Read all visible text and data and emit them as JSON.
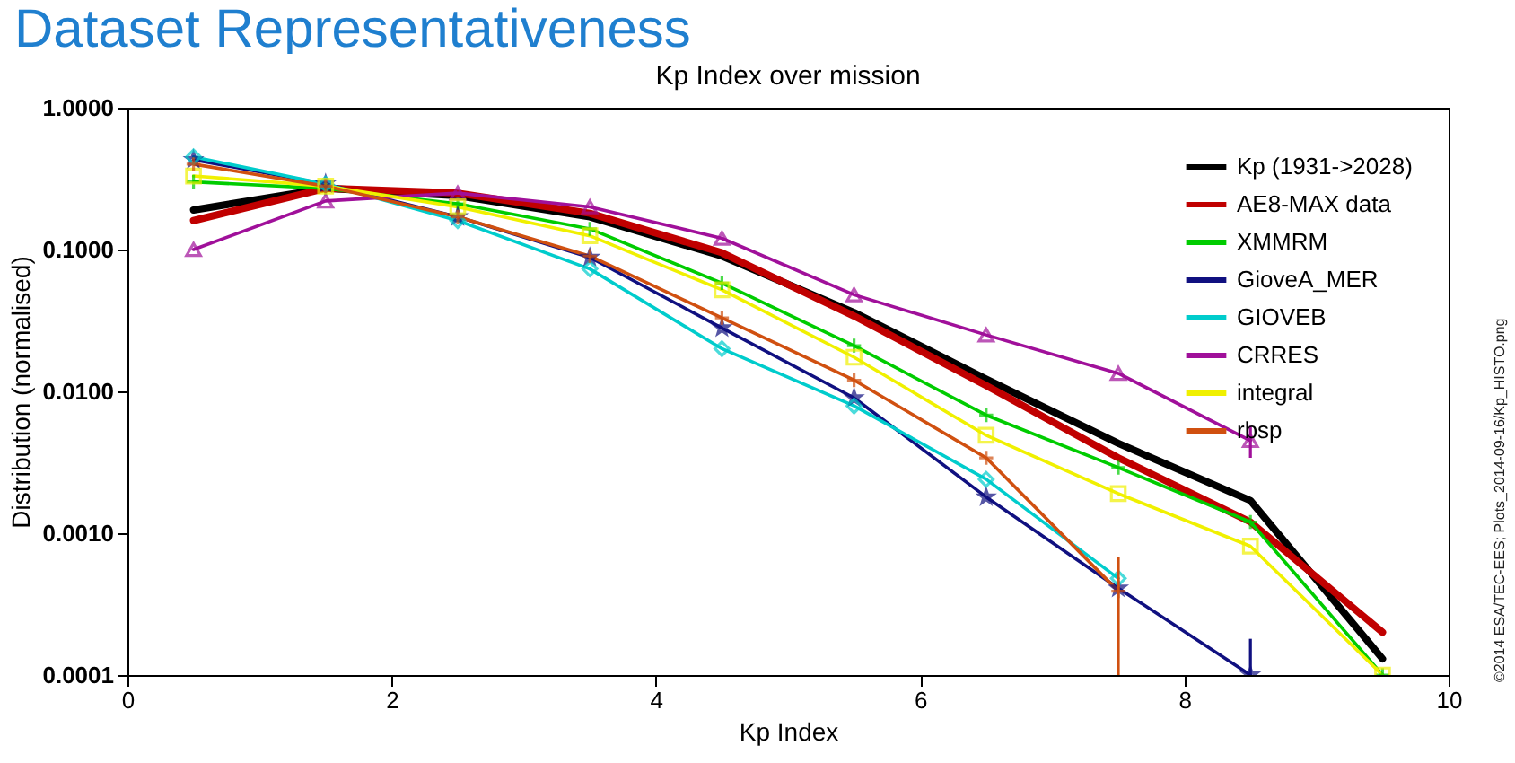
{
  "chart_data": {
    "type": "line",
    "title": "Kp Index over mission",
    "xlabel": "Kp Index",
    "ylabel": "Distribution (normalised)",
    "annotations": [
      "Dataset Representativeness",
      "©2014 ESA/TEC-EES; Plots_2014-09-16/Kp_HISTO.png"
    ],
    "x": [
      0.5,
      1.5,
      2.5,
      3.5,
      4.5,
      5.5,
      6.5,
      7.5,
      8.5,
      9.5
    ],
    "series": [
      {
        "name": "Kp (1931->2028)",
        "color": "#000000",
        "marker": "none",
        "values": [
          0.19,
          0.27,
          0.24,
          0.17,
          0.09,
          0.036,
          0.0122,
          0.0043,
          0.0017,
          0.00013
        ]
      },
      {
        "name": "AE8-MAX data",
        "color": "#c00000",
        "marker": "none",
        "values": [
          0.16,
          0.27,
          0.25,
          0.18,
          0.095,
          0.034,
          0.011,
          0.0034,
          0.0012,
          0.0002
        ]
      },
      {
        "name": "XMMRM",
        "color": "#00cc00",
        "marker": "cross",
        "values": [
          0.3,
          0.27,
          0.21,
          0.14,
          0.058,
          0.021,
          0.0068,
          0.0029,
          0.0012,
          0.0001
        ]
      },
      {
        "name": "GioveA_MER",
        "color": "#101080",
        "marker": "star",
        "values": [
          0.43,
          0.29,
          0.17,
          0.088,
          0.028,
          0.009,
          0.0018,
          0.00041,
          0.0001,
          null
        ],
        "errors": [
          null,
          null,
          null,
          null,
          null,
          null,
          null,
          null,
          [
            0.0001,
            0.00018
          ],
          null
        ]
      },
      {
        "name": "GIOVEB",
        "color": "#00cccc",
        "marker": "diamond",
        "values": [
          0.45,
          0.29,
          0.16,
          0.073,
          0.02,
          0.0079,
          0.0024,
          0.00048,
          null,
          null
        ]
      },
      {
        "name": "CRRES",
        "color": "#a0109a",
        "marker": "triangle",
        "values": [
          0.1,
          0.22,
          0.25,
          0.2,
          0.12,
          0.048,
          0.025,
          0.0134,
          0.0045,
          null
        ],
        "errors": [
          null,
          null,
          null,
          null,
          null,
          null,
          null,
          null,
          [
            0.0034,
            0.0057
          ],
          null
        ]
      },
      {
        "name": "integral",
        "color": "#f0f000",
        "marker": "square",
        "values": [
          0.33,
          0.28,
          0.2,
          0.125,
          0.052,
          0.0174,
          0.0049,
          0.0019,
          0.00081,
          0.0001
        ]
      },
      {
        "name": "rbsp",
        "color": "#d05010",
        "marker": "cross",
        "values": [
          0.4,
          0.28,
          0.17,
          0.09,
          0.033,
          0.012,
          0.0034,
          0.00039,
          null,
          null
        ],
        "errors": [
          null,
          null,
          null,
          null,
          null,
          null,
          null,
          [
            0.0001,
            0.00068
          ],
          null,
          null
        ]
      }
    ],
    "log": "y",
    "xlim": [
      0,
      10
    ],
    "xticks": [
      0,
      2,
      4,
      6,
      8,
      10
    ],
    "ylim": [
      0.0001,
      1
    ],
    "yticks": [
      {
        "value": 0.0001,
        "label": "0.0001"
      },
      {
        "value": 0.001,
        "label": "0.0010"
      },
      {
        "value": 0.01,
        "label": "0.0100"
      },
      {
        "value": 0.1,
        "label": "0.1000"
      },
      {
        "value": 1,
        "label": "1.0000"
      }
    ],
    "grid": false,
    "legend": "top right"
  }
}
